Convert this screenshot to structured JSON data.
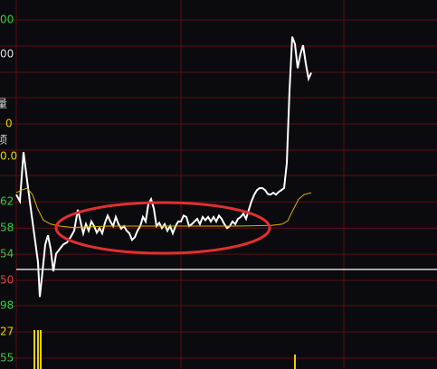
{
  "chart_data": {
    "type": "line",
    "left_labels": [
      "00",
      "00",
      "量",
      "0",
      "顷",
      "0.0",
      "98",
      "27",
      "55"
    ],
    "ylim": [
      36.5,
      92.8
    ],
    "yticks": [
      62,
      58,
      54,
      50
    ],
    "xlim": [
      0,
      465
    ],
    "reference_line": 51.7,
    "reference_color": "#ffffff",
    "series": [
      {
        "color": "#ffffff",
        "x": [
          0,
          4,
          8,
          12,
          16,
          20,
          24,
          26,
          29,
          32,
          35,
          38,
          41,
          44,
          48,
          52,
          56,
          60,
          64,
          68,
          71,
          74,
          77,
          80,
          83,
          86,
          89,
          92,
          95,
          98,
          101,
          104,
          107,
          110,
          113,
          116,
          119,
          122,
          125,
          128,
          131,
          134,
          137,
          140,
          143,
          146,
          149,
          152,
          155,
          158,
          161,
          164,
          167,
          170,
          173,
          176,
          179,
          182,
          185,
          188,
          191,
          194,
          197,
          200,
          203,
          206,
          209,
          212,
          215,
          218,
          221,
          224,
          227,
          230,
          233,
          236,
          239,
          242,
          245,
          248,
          251,
          254,
          257,
          260,
          263,
          266,
          269,
          272,
          275,
          278,
          281,
          284,
          287,
          290,
          293,
          296,
          299,
          302,
          305,
          308,
          311,
          314,
          317,
          320,
          323,
          326
        ],
        "values": [
          63.1,
          62.1,
          69.6,
          65.2,
          61.0,
          56.9,
          52.8,
          47.5,
          51.4,
          55.5,
          56.9,
          54.8,
          51.4,
          54.1,
          54.8,
          55.5,
          55.8,
          56.6,
          57.6,
          60.8,
          59.0,
          57.2,
          58.6,
          57.6,
          59.0,
          58.3,
          57.3,
          58.0,
          57.2,
          58.8,
          59.9,
          59.0,
          58.3,
          59.7,
          58.6,
          57.9,
          58.3,
          57.6,
          57.2,
          56.2,
          56.6,
          57.6,
          58.3,
          59.7,
          59.0,
          61.7,
          62.4,
          61.0,
          58.3,
          58.8,
          58.0,
          58.6,
          57.6,
          58.3,
          57.2,
          58.3,
          59.0,
          59.0,
          59.9,
          59.7,
          58.3,
          58.6,
          59.0,
          59.4,
          58.6,
          59.7,
          59.2,
          59.7,
          59.0,
          59.7,
          59.0,
          59.9,
          59.4,
          58.6,
          58.0,
          58.3,
          59.0,
          58.6,
          59.4,
          59.7,
          60.2,
          59.4,
          60.8,
          62.1,
          63.1,
          63.8,
          64.1,
          64.1,
          63.8,
          63.2,
          63.1,
          63.4,
          63.1,
          63.5,
          63.8,
          64.1,
          67.9,
          79.0,
          87.2,
          86.1,
          82.4,
          84.5,
          85.9,
          83.1,
          80.8,
          81.7
        ]
      },
      {
        "color": "#d9b400",
        "x": [
          0,
          6,
          12,
          18,
          24,
          30,
          38,
          48,
          62,
          102,
          182,
          242,
          282,
          294,
          300,
          306,
          312,
          318,
          326
        ],
        "values": [
          63.4,
          63.8,
          64.1,
          63.1,
          60.8,
          59.2,
          58.6,
          58.3,
          58.1,
          58.3,
          58.3,
          58.3,
          58.4,
          58.6,
          59.1,
          60.8,
          62.4,
          63.1,
          63.4
        ]
      }
    ],
    "volume": {
      "color": "#e6d200",
      "x": [
        20,
        24,
        27,
        308
      ],
      "values": [
        43,
        43,
        43,
        16
      ],
      "vlim": [
        0,
        70
      ]
    }
  }
}
